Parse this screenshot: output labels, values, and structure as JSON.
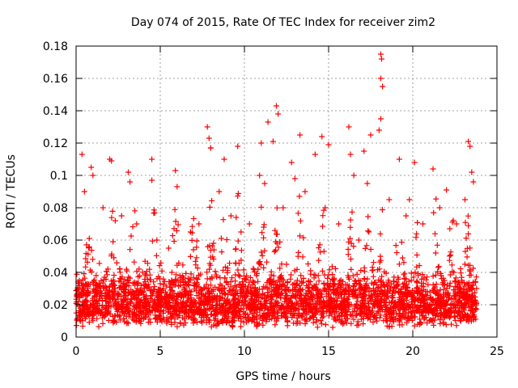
{
  "chart_data": {
    "type": "scatter",
    "title": "Day 074 of 2015, Rate Of TEC Index for receiver zim2",
    "xlabel": "GPS time / hours",
    "ylabel": "ROTI / TECUs",
    "xlim": [
      0,
      25
    ],
    "ylim": [
      0,
      0.18
    ],
    "xticks": [
      "0",
      "5",
      "10",
      "15",
      "20",
      "25"
    ],
    "yticks": [
      "0",
      "0.02",
      "0.04",
      "0.06",
      "0.08",
      "0.1",
      "0.12",
      "0.14",
      "0.16",
      "0.18"
    ],
    "grid": true,
    "legend": "none",
    "marker": "plus",
    "color": "#ff0000",
    "series": [
      {
        "x_range": [
          0,
          23.8
        ],
        "points": [
          [
            0.35,
            0.113
          ],
          [
            0.9,
            0.105
          ],
          [
            1.0,
            0.1
          ],
          [
            2.0,
            0.11
          ],
          [
            2.1,
            0.109
          ],
          [
            3.1,
            0.102
          ],
          [
            3.2,
            0.096
          ],
          [
            4.5,
            0.11
          ],
          [
            4.5,
            0.097
          ],
          [
            5.9,
            0.103
          ],
          [
            6.0,
            0.093
          ],
          [
            7.8,
            0.13
          ],
          [
            7.9,
            0.123
          ],
          [
            8.0,
            0.117
          ],
          [
            8.8,
            0.11
          ],
          [
            9.6,
            0.118
          ],
          [
            11.0,
            0.12
          ],
          [
            11.4,
            0.133
          ],
          [
            11.7,
            0.121
          ],
          [
            11.9,
            0.143
          ],
          [
            12.0,
            0.138
          ],
          [
            12.8,
            0.108
          ],
          [
            13.3,
            0.125
          ],
          [
            14.2,
            0.113
          ],
          [
            14.6,
            0.124
          ],
          [
            15.0,
            0.119
          ],
          [
            16.2,
            0.13
          ],
          [
            16.3,
            0.113
          ],
          [
            17.1,
            0.115
          ],
          [
            17.5,
            0.125
          ],
          [
            18.0,
            0.128
          ],
          [
            18.1,
            0.175
          ],
          [
            18.15,
            0.172
          ],
          [
            18.1,
            0.16
          ],
          [
            18.2,
            0.155
          ],
          [
            18.1,
            0.135
          ],
          [
            19.2,
            0.11
          ],
          [
            20.1,
            0.108
          ],
          [
            21.2,
            0.104
          ],
          [
            22.0,
            0.091
          ],
          [
            23.3,
            0.121
          ],
          [
            23.4,
            0.118
          ],
          [
            23.5,
            0.102
          ],
          [
            23.6,
            0.096
          ],
          [
            8.0,
            0.117
          ],
          [
            10.9,
            0.1
          ],
          [
            13.0,
            0.098
          ],
          [
            16.5,
            0.1
          ],
          [
            19.8,
            0.085
          ],
          [
            0.5,
            0.09
          ],
          [
            1.6,
            0.08
          ],
          [
            2.7,
            0.075
          ],
          [
            3.6,
            0.07
          ],
          [
            4.8,
            0.06
          ],
          [
            5.5,
            0.055
          ],
          [
            6.8,
            0.065
          ],
          [
            7.3,
            0.07
          ],
          [
            8.5,
            0.09
          ],
          [
            9.2,
            0.075
          ],
          [
            10.3,
            0.07
          ],
          [
            11.2,
            0.095
          ],
          [
            12.3,
            0.08
          ],
          [
            13.6,
            0.09
          ],
          [
            14.8,
            0.08
          ],
          [
            15.6,
            0.07
          ],
          [
            17.3,
            0.095
          ],
          [
            18.6,
            0.085
          ],
          [
            19.6,
            0.075
          ],
          [
            20.6,
            0.07
          ],
          [
            21.6,
            0.08
          ],
          [
            22.6,
            0.07
          ],
          [
            23.1,
            0.085
          ],
          [
            0.2,
            0.035
          ],
          [
            0.1,
            0.03
          ],
          [
            5.0,
            0.033
          ],
          [
            9.8,
            0.065
          ],
          [
            12.5,
            0.045
          ],
          [
            16.8,
            0.06
          ]
        ]
      }
    ]
  }
}
